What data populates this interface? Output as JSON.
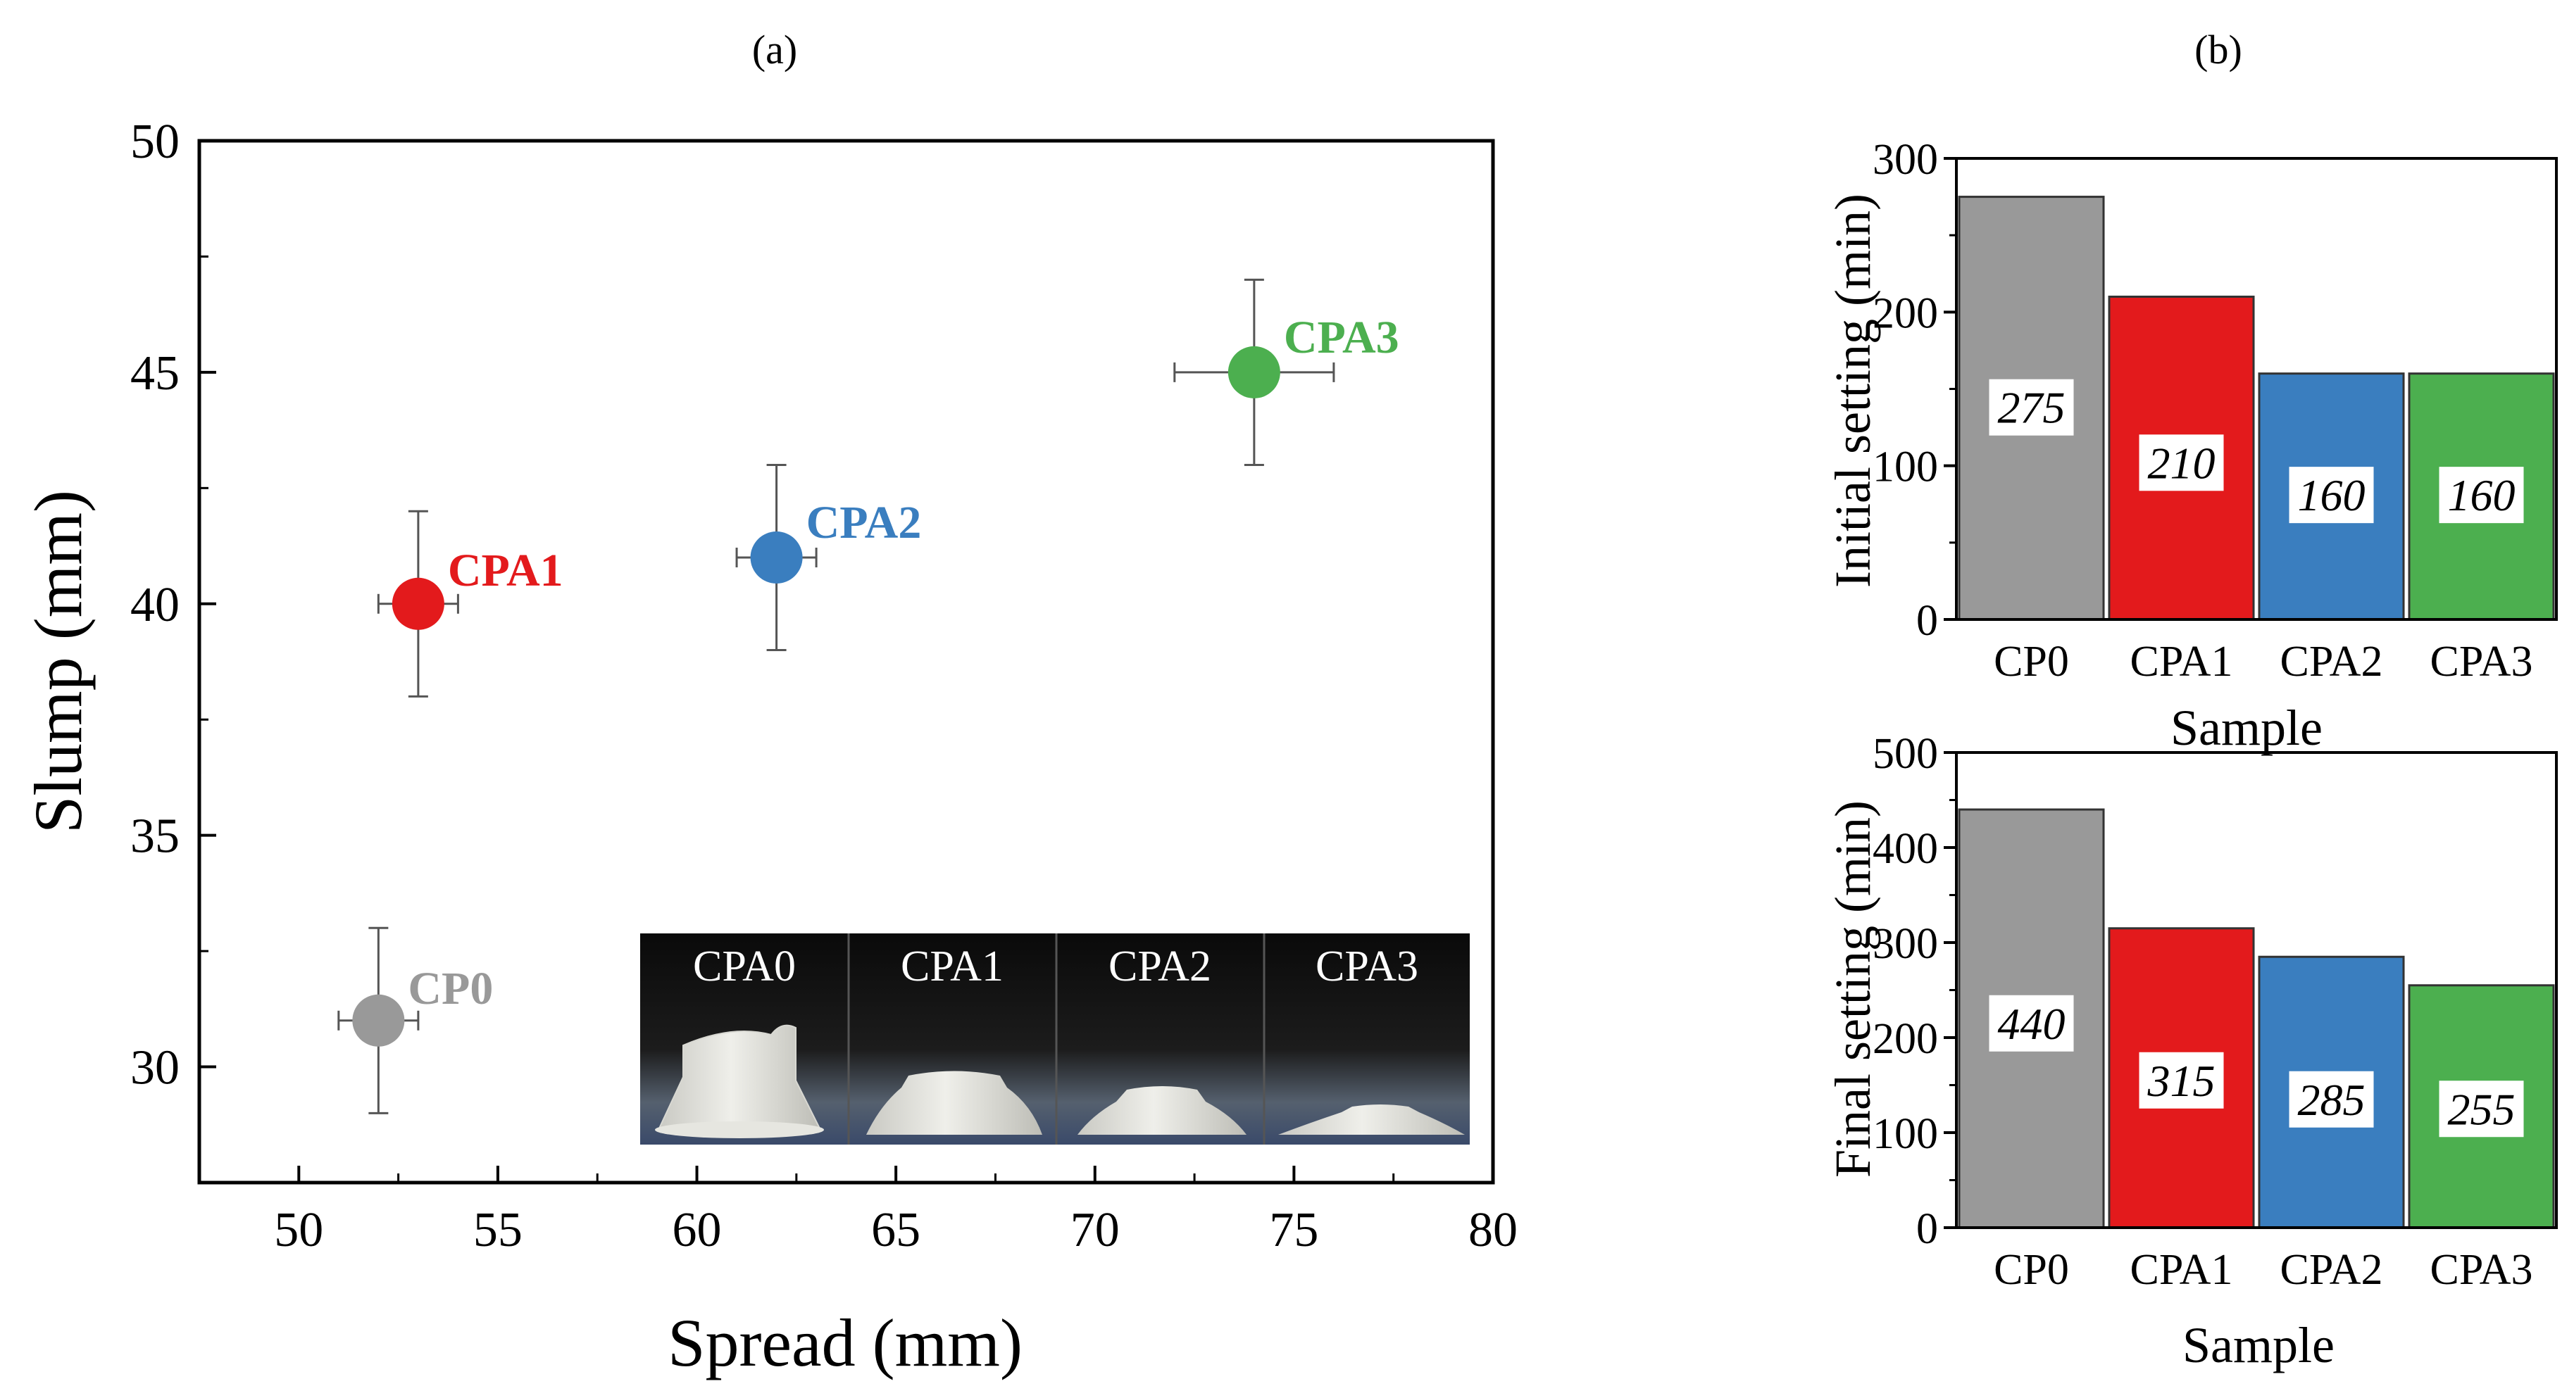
{
  "panel_labels": {
    "a": "(a)",
    "b": "(b)"
  },
  "colors": {
    "CP0": "#999999",
    "CPA1": "#e31a1c",
    "CPA2": "#3a7ebf",
    "CPA3": "#4caf4f"
  },
  "inset": {
    "labels": [
      "CPA0",
      "CPA1",
      "CPA2",
      "CPA3"
    ]
  },
  "chart_data": [
    {
      "type": "scatter",
      "title": "",
      "xlabel": "Spread (mm)",
      "ylabel": "Slump (mm)",
      "xlim": [
        47.5,
        80
      ],
      "ylim": [
        27.5,
        50
      ],
      "xticks": [
        50,
        55,
        60,
        65,
        70,
        75,
        80
      ],
      "yticks": [
        30,
        35,
        40,
        45,
        50
      ],
      "points": [
        {
          "name": "CP0",
          "x": 52,
          "y": 31,
          "xerr": 1,
          "yerr": 2
        },
        {
          "name": "CPA1",
          "x": 53,
          "y": 40,
          "xerr": 1,
          "yerr": 2
        },
        {
          "name": "CPA2",
          "x": 62,
          "y": 41,
          "xerr": 1,
          "yerr": 2
        },
        {
          "name": "CPA3",
          "x": 74,
          "y": 45,
          "xerr": 2,
          "yerr": 2
        }
      ]
    },
    {
      "type": "bar",
      "xlabel": "Sample",
      "ylabel": "Initial setting (min)",
      "categories": [
        "CP0",
        "CPA1",
        "CPA2",
        "CPA3"
      ],
      "values": [
        275,
        210,
        160,
        160
      ],
      "ylim": [
        0,
        300
      ],
      "yticks": [
        0,
        100,
        200,
        300
      ]
    },
    {
      "type": "bar",
      "xlabel": "Sample",
      "ylabel": "Final setting (min)",
      "categories": [
        "CP0",
        "CPA1",
        "CPA2",
        "CPA3"
      ],
      "values": [
        440,
        315,
        285,
        255
      ],
      "ylim": [
        0,
        500
      ],
      "yticks": [
        0,
        100,
        200,
        300,
        400,
        500
      ]
    }
  ]
}
